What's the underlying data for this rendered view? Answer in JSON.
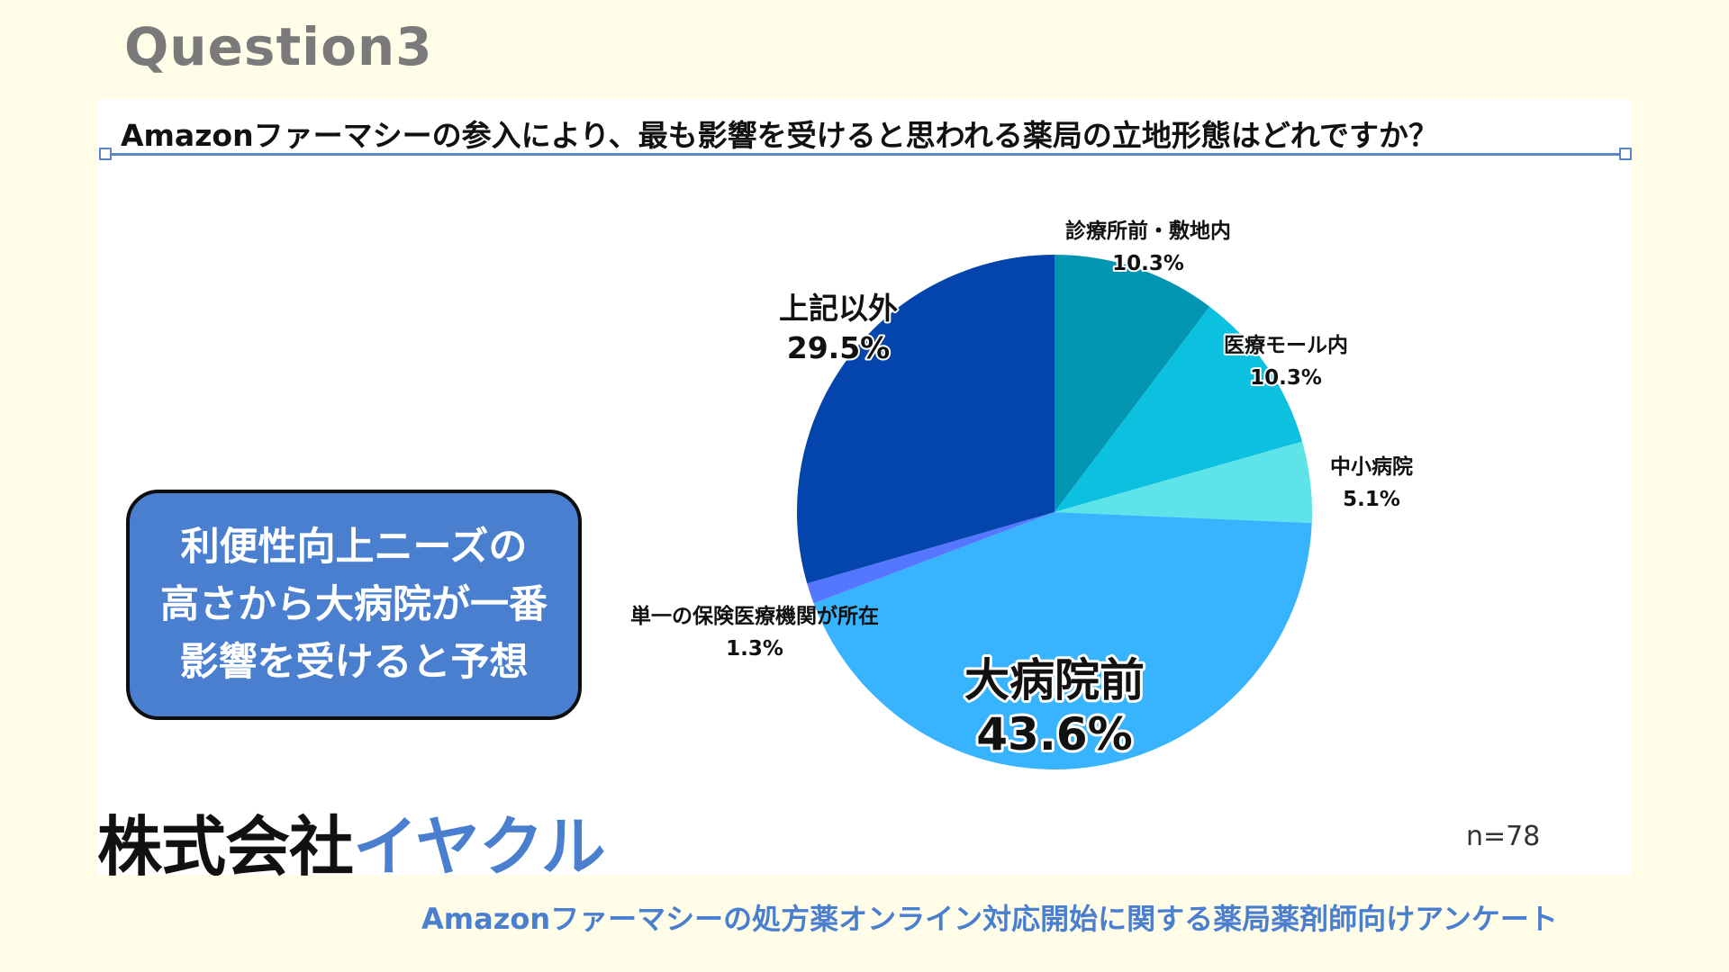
{
  "header": {
    "title": "Question3"
  },
  "question": "Amazonファーマシーの参入により、最も影響を受けると思われる薬局の立地形態はどれですか？",
  "callout": {
    "lines": [
      "利便性向上ニーズの",
      "高さから大病院が一番",
      "影響を受けると予想"
    ]
  },
  "brand": {
    "part1": "株式会社",
    "part2": "イヤクル"
  },
  "sample_size": "n=78",
  "footer": "Amazonファーマシーの処方薬オンライン対応開始に関する薬局薬剤師向けアンケート",
  "chart_data": {
    "type": "pie",
    "unit": "%",
    "slices": [
      {
        "label": "診療所前・敷地内",
        "value": 10.3,
        "display": "10.3%",
        "color": "#0396b2"
      },
      {
        "label": "医療モール内",
        "value": 10.3,
        "display": "10.3%",
        "color": "#0cc0e0"
      },
      {
        "label": "中小病院",
        "value": 5.1,
        "display": "5.1%",
        "color": "#5ee3e8"
      },
      {
        "label": "大病院前",
        "value": 43.6,
        "display": "43.6%",
        "color": "#38b4ff"
      },
      {
        "label": "単一の保険医療機関が所在",
        "value": 1.3,
        "display": "1.3%",
        "color": "#5577ff"
      },
      {
        "label": "上記以外",
        "value": 29.5,
        "display": "29.5%",
        "color": "#0345ac"
      }
    ]
  }
}
